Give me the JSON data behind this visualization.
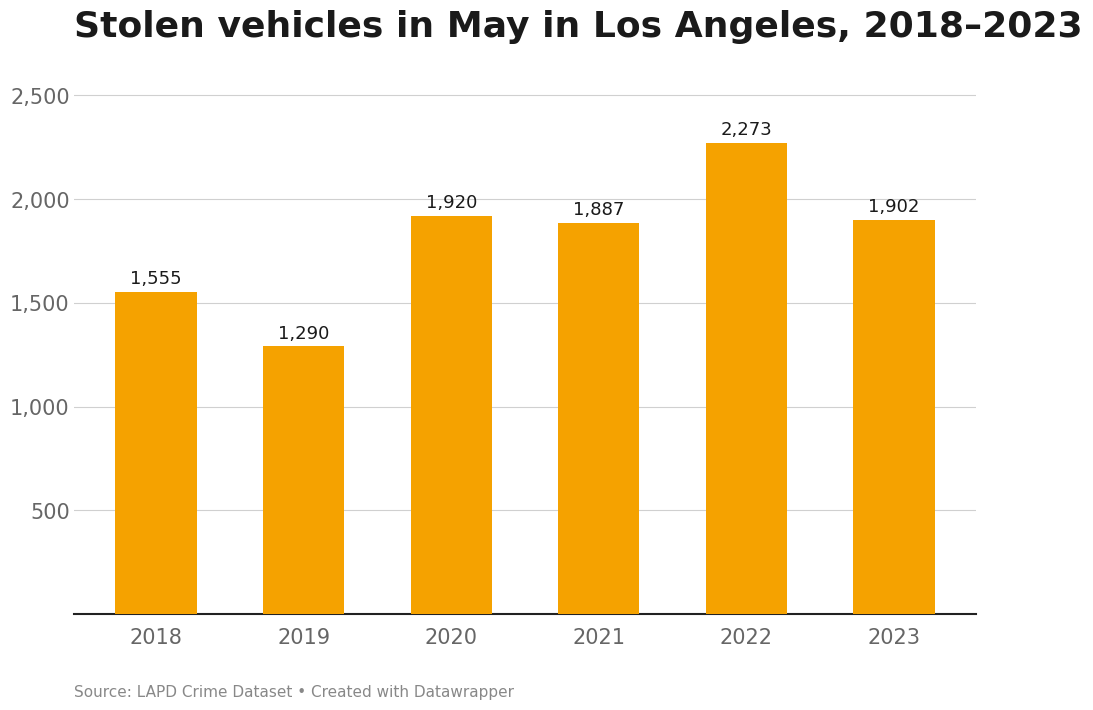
{
  "years": [
    "2018",
    "2019",
    "2020",
    "2021",
    "2022",
    "2023"
  ],
  "values": [
    1555,
    1290,
    1920,
    1887,
    2273,
    1902
  ],
  "bar_color": "#F5A200",
  "title": "Stolen vehicles in May in Los Angeles, 2018–2023",
  "title_fontsize": 26,
  "title_fontweight": "bold",
  "title_color": "#1a1a1a",
  "ylabel_ticks": [
    500,
    1000,
    1500,
    2000,
    2500
  ],
  "ylim": [
    0,
    2650
  ],
  "annotation_fontsize": 13,
  "annotation_fontweight": "normal",
  "annotation_color": "#1a1a1a",
  "tick_label_fontsize": 15,
  "tick_label_color": "#666666",
  "source_text": "Source: LAPD Crime Dataset • Created with Datawrapper",
  "source_fontsize": 11,
  "source_color": "#888888",
  "background_color": "#ffffff",
  "grid_color": "#d0d0d0",
  "axis_line_color": "#222222",
  "bar_width": 0.55
}
